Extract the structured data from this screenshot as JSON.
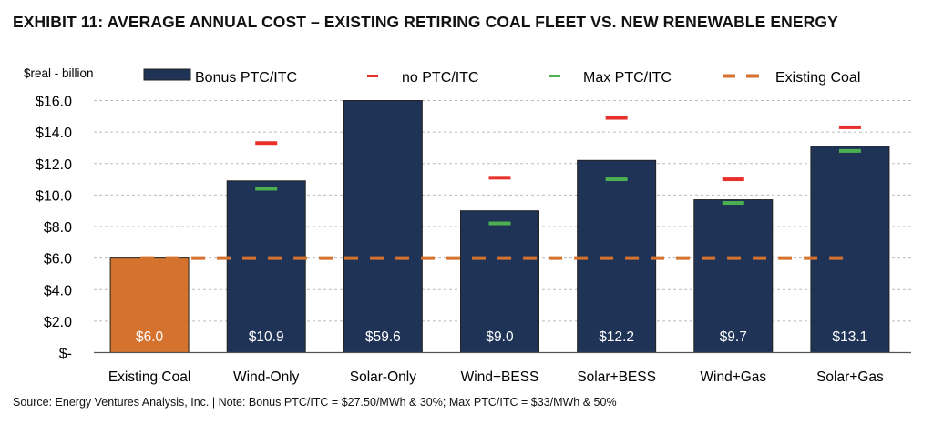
{
  "chart_data": {
    "type": "bar",
    "title": "EXHIBIT 11: AVERAGE ANNUAL COST – EXISTING RETIRING COAL FLEET VS. NEW RENEWABLE ENERGY",
    "ylabel": "$real - billion",
    "xlabel": "",
    "ylim": [
      0,
      16
    ],
    "yticks": [
      0,
      2,
      4,
      6,
      8,
      10,
      12,
      14,
      16
    ],
    "ytick_labels": [
      "$-",
      "$2.0",
      "$4.0",
      "$6.0",
      "$8.0",
      "$10.0",
      "$12.0",
      "$14.0",
      "$16.0"
    ],
    "grid": true,
    "legend_position": "top",
    "categories": [
      "Existing Coal",
      "Wind-Only",
      "Solar-Only",
      "Wind+BESS",
      "Solar+BESS",
      "Wind+Gas",
      "Solar+Gas"
    ],
    "series": [
      {
        "name": "Bonus PTC/ITC",
        "kind": "bar",
        "color": "#1f3357",
        "highlight_color": "#d4722e",
        "values": [
          6.0,
          10.9,
          59.6,
          9.0,
          12.2,
          9.7,
          13.1
        ],
        "data_labels": [
          "$6.0",
          "$10.9",
          "$59.6",
          "$9.0",
          "$12.2",
          "$9.7",
          "$13.1"
        ]
      },
      {
        "name": "no PTC/ITC",
        "kind": "marker",
        "color": "#e8302a",
        "values": [
          null,
          13.3,
          null,
          11.1,
          14.9,
          11.0,
          14.3
        ]
      },
      {
        "name": "Max PTC/ITC",
        "kind": "marker",
        "color": "#4caf50",
        "values": [
          null,
          10.4,
          null,
          8.2,
          11.0,
          9.5,
          12.8
        ]
      },
      {
        "name": "Existing Coal",
        "kind": "dashed-line",
        "color": "#d4722e",
        "value": 6.0
      }
    ]
  },
  "source": "Source: Energy Ventures Analysis, Inc. | Note: Bonus PTC/ITC = $27.50/MWh & 30%; Max PTC/ITC = $33/MWh & 50%"
}
